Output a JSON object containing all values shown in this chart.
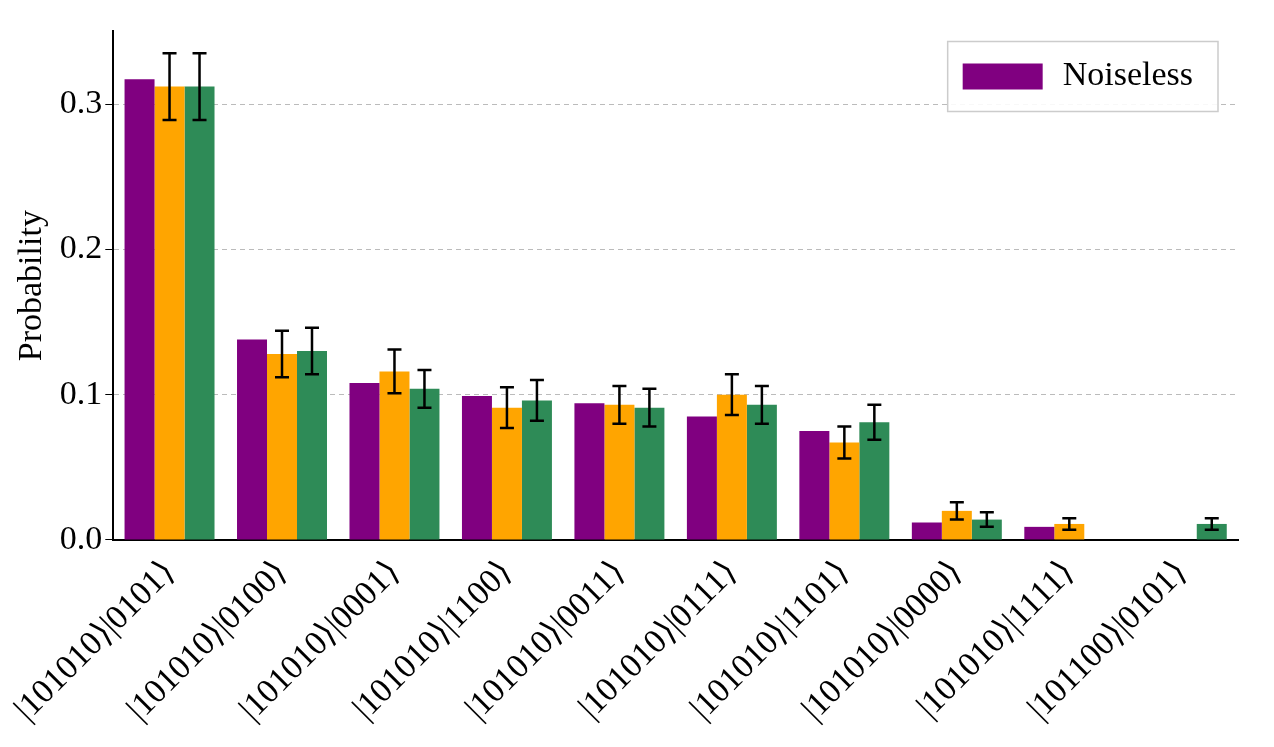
{
  "chart_data": {
    "type": "bar",
    "ylabel": "Probability",
    "categories": [
      "|101010⟩|0101⟩",
      "|101010⟩|0100⟩",
      "|101010⟩|0001⟩",
      "|101010⟩|1100⟩",
      "|101010⟩|0011⟩",
      "|101010⟩|0111⟩",
      "|101010⟩|1101⟩",
      "|101010⟩|0000⟩",
      "|101010⟩|1111⟩",
      "|101100⟩|0101⟩"
    ],
    "series": [
      {
        "name": "Noiseless",
        "color": "#800080",
        "values": [
          0.317,
          0.138,
          0.108,
          0.099,
          0.094,
          0.085,
          0.075,
          0.012,
          0.009,
          null
        ]
      },
      {
        "color": "#ffa500",
        "values": [
          0.312,
          0.128,
          0.116,
          0.091,
          0.093,
          0.1,
          0.067,
          0.02,
          0.011,
          null
        ],
        "errors": [
          0.023,
          0.016,
          0.015,
          0.014,
          0.013,
          0.014,
          0.011,
          0.006,
          0.004,
          null
        ]
      },
      {
        "color": "#2e8b57",
        "values": [
          0.312,
          0.13,
          0.104,
          0.096,
          0.091,
          0.093,
          0.081,
          0.014,
          null,
          0.011
        ],
        "errors": [
          0.023,
          0.016,
          0.013,
          0.014,
          0.013,
          0.013,
          0.012,
          0.005,
          null,
          0.004
        ]
      }
    ],
    "ylim": [
      0,
      0.35
    ],
    "yticks": [
      {
        "value": 0,
        "label": "0.0"
      },
      {
        "value": 0.1,
        "label": "0.1"
      },
      {
        "value": 0.2,
        "label": "0.2"
      },
      {
        "value": 0.3,
        "label": "0.3"
      }
    ],
    "grid": "y",
    "legend": "top right"
  }
}
